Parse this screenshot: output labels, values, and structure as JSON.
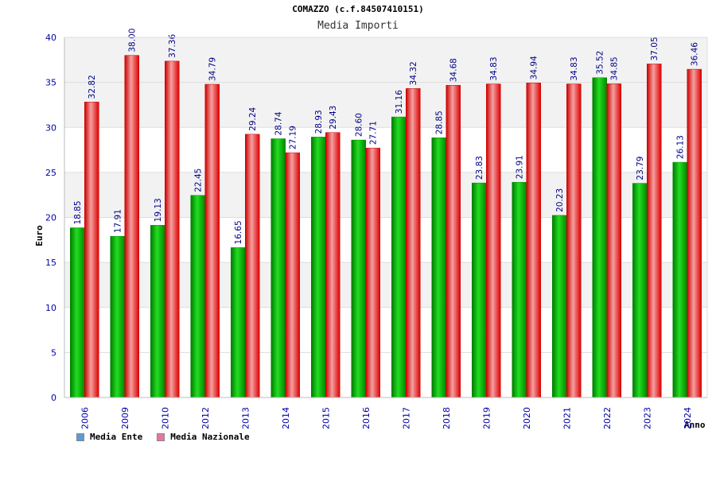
{
  "chart_data": {
    "type": "bar",
    "title": "COMAZZO (c.f.84507410151)",
    "subtitle": "Media Importi",
    "ylabel": "Euro",
    "xlabel": "Anno",
    "ylim": [
      0,
      40
    ],
    "yticks": [
      0,
      5,
      10,
      15,
      20,
      25,
      30,
      35,
      40
    ],
    "categories": [
      "2006",
      "2009",
      "2010",
      "2012",
      "2013",
      "2014",
      "2015",
      "2016",
      "2017",
      "2018",
      "2019",
      "2020",
      "2021",
      "2022",
      "2023",
      "2024"
    ],
    "series": [
      {
        "name": "Media Ente",
        "color": "#00aa00",
        "values": [
          18.85,
          17.91,
          19.13,
          22.45,
          16.65,
          28.74,
          28.93,
          28.6,
          31.16,
          28.85,
          23.83,
          23.91,
          20.23,
          35.52,
          23.79,
          26.13
        ],
        "labels": [
          "18.85",
          "17.91",
          "19.13",
          "22.45",
          "16.65",
          "28.74",
          "28.93",
          "28.60",
          "31.16",
          "28.85",
          "23.83",
          "23.91",
          "20.23",
          "35.52",
          "23.79",
          "26.13"
        ]
      },
      {
        "name": "Media Nazionale",
        "color": "#dd0000",
        "values": [
          32.82,
          38.0,
          37.36,
          34.79,
          29.24,
          27.19,
          29.43,
          27.71,
          34.32,
          34.68,
          34.83,
          34.94,
          34.83,
          34.85,
          37.05,
          36.46
        ],
        "labels": [
          "32.82",
          "38.00",
          "37.36",
          "34.79",
          "29.24",
          "27.19",
          "29.43",
          "27.71",
          "34.32",
          "34.68",
          "34.83",
          "34.94",
          "34.83",
          "34.85",
          "37.05",
          "36.46"
        ]
      }
    ]
  },
  "legend": [
    {
      "label": "Media Ente",
      "color": "#5b9bd5"
    },
    {
      "label": "Media Nazionale",
      "color": "#e377a4"
    }
  ]
}
